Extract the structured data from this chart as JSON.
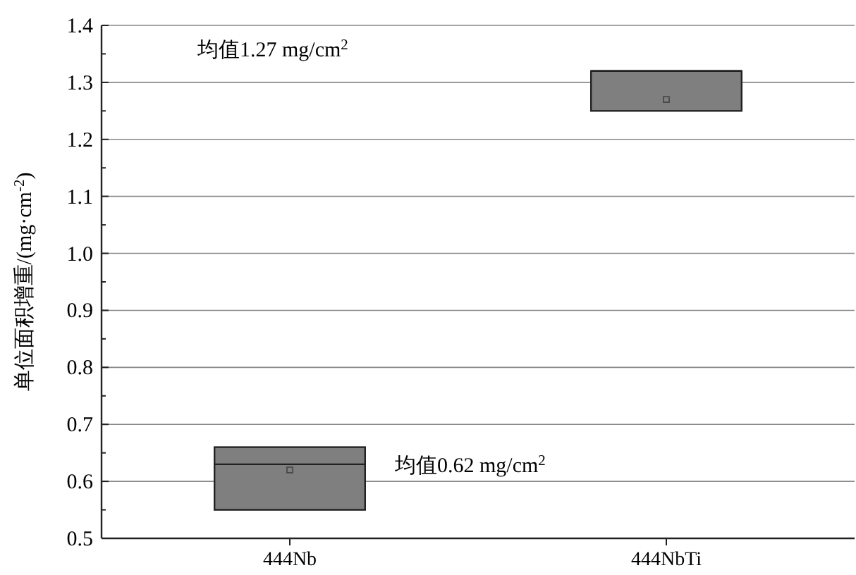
{
  "chart_data": {
    "type": "box",
    "ylabel": "单位面积增重/(mg·cm$^{-2}$)",
    "categories": [
      "444Nb",
      "444NbTi"
    ],
    "boxes": [
      {
        "q1": 0.55,
        "median": 0.63,
        "q3": 0.66,
        "mean": 0.62
      },
      {
        "q1": 1.25,
        "median": 1.32,
        "q3": 1.32,
        "mean": 1.27
      }
    ],
    "color": "#7f7f7f",
    "ylim": [
      0.5,
      1.4
    ],
    "yticks": [
      0.5,
      0.6,
      0.7,
      0.8,
      0.9,
      {
        "value": 1,
        "label": "1.0"
      },
      1.1,
      1.2,
      1.3,
      1.4
    ],
    "grid": "y",
    "annotations": [
      "均值1.27 mg/cm$^{2}$",
      "均值0.62 mg/cm$^{2}$"
    ]
  }
}
